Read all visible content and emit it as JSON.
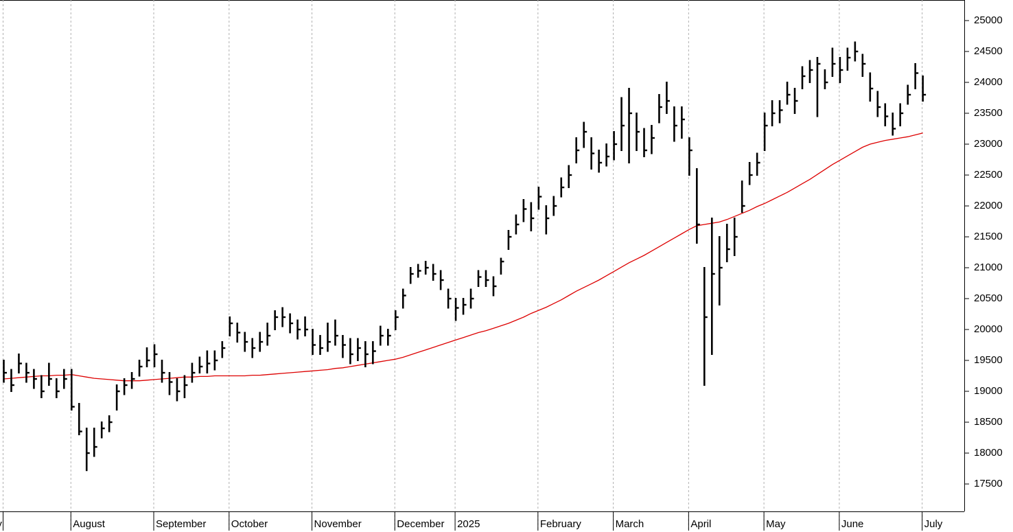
{
  "chart_data": {
    "type": "ohlc",
    "color": "#000000",
    "categories": [
      "ly",
      null,
      null,
      null,
      null,
      null,
      null,
      null,
      null,
      "August",
      null,
      null,
      null,
      null,
      null,
      null,
      null,
      null,
      null,
      null,
      "September",
      null,
      null,
      null,
      null,
      null,
      null,
      null,
      null,
      null,
      "October",
      null,
      null,
      null,
      null,
      null,
      null,
      null,
      null,
      null,
      null,
      "November",
      null,
      null,
      null,
      null,
      null,
      null,
      null,
      null,
      null,
      null,
      "December",
      null,
      null,
      null,
      null,
      null,
      null,
      null,
      "2025",
      null,
      null,
      null,
      null,
      null,
      null,
      null,
      null,
      null,
      null,
      "February",
      null,
      null,
      null,
      null,
      null,
      null,
      null,
      null,
      null,
      "March",
      null,
      null,
      null,
      null,
      null,
      null,
      null,
      null,
      null,
      "April",
      null,
      null,
      null,
      null,
      null,
      null,
      null,
      null,
      null,
      "May",
      null,
      null,
      null,
      null,
      null,
      null,
      null,
      null,
      null,
      "June",
      null,
      null,
      null,
      null,
      null,
      null,
      null,
      null,
      null,
      null,
      "July",
      null,
      null,
      null,
      null,
      null
    ],
    "close": [
      19300,
      19100,
      19450,
      19300,
      19200,
      19000,
      19200,
      19000,
      19200,
      18750,
      18350,
      18000,
      18100,
      18400,
      18500,
      19000,
      19100,
      19200,
      19400,
      19500,
      19600,
      19300,
      19150,
      19000,
      19100,
      19300,
      19400,
      19450,
      19500,
      19700,
      20100,
      19950,
      19800,
      19700,
      19800,
      19900,
      20200,
      20200,
      20100,
      20000,
      20000,
      19750,
      19700,
      19800,
      19900,
      19750,
      19600,
      19700,
      19600,
      19650,
      19900,
      19900,
      20200,
      20550,
      20900,
      20950,
      21000,
      20900,
      20800,
      20500,
      20350,
      20400,
      20500,
      20850,
      20800,
      20700,
      21100,
      21500,
      21700,
      21950,
      21800,
      22150,
      21800,
      22000,
      22300,
      22500,
      22900,
      23200,
      22850,
      22700,
      22800,
      23000,
      23300,
      23500,
      23200,
      22900,
      23100,
      23600,
      23700,
      23300,
      23400,
      22900,
      21700,
      20200,
      20900,
      21000,
      21300,
      21500,
      22000,
      22500,
      22700,
      23300,
      23500,
      23550,
      23800,
      23700,
      24100,
      24200,
      24300,
      24000,
      24300,
      24200,
      24400,
      24500,
      24300,
      23900,
      23600,
      23450,
      23250,
      23500,
      23800,
      24150,
      23800,
      null,
      null,
      null,
      null,
      null
    ],
    "high": [
      19500,
      19350,
      19600,
      19450,
      19350,
      19250,
      19450,
      19200,
      19350,
      19350,
      18800,
      18400,
      18400,
      18500,
      18600,
      19100,
      19200,
      19300,
      19500,
      19700,
      19750,
      19500,
      19300,
      19200,
      19250,
      19450,
      19550,
      19650,
      19650,
      19800,
      20200,
      20100,
      19950,
      19850,
      19950,
      20100,
      20300,
      20350,
      20250,
      20150,
      20200,
      20000,
      19900,
      20100,
      20150,
      19900,
      19850,
      19850,
      19800,
      19800,
      20050,
      20000,
      20300,
      20650,
      21000,
      21050,
      21100,
      21050,
      20950,
      20650,
      20500,
      20500,
      20650,
      20950,
      20950,
      20850,
      21150,
      21600,
      21850,
      22100,
      22050,
      22300,
      22000,
      22150,
      22450,
      22650,
      23100,
      23350,
      23100,
      22900,
      23000,
      23200,
      23750,
      23900,
      23500,
      23250,
      23300,
      23800,
      24000,
      23600,
      23600,
      23100,
      22600,
      21000,
      21800,
      21500,
      21700,
      21800,
      22400,
      22700,
      22850,
      23500,
      23700,
      23700,
      24000,
      23900,
      24250,
      24350,
      24400,
      24200,
      24550,
      24400,
      24550,
      24650,
      24450,
      24150,
      23850,
      23650,
      23500,
      23650,
      23950,
      24300,
      24100,
      null,
      null,
      null,
      null,
      null
    ],
    "low": [
      19150,
      19000,
      19300,
      19150,
      19050,
      18900,
      19100,
      18900,
      19050,
      18700,
      18300,
      17720,
      17950,
      18250,
      18350,
      18700,
      18950,
      19050,
      19250,
      19400,
      19400,
      19150,
      18950,
      18850,
      18900,
      19150,
      19300,
      19300,
      19350,
      19550,
      19900,
      19800,
      19650,
      19550,
      19650,
      19750,
      20000,
      20050,
      19950,
      19850,
      19900,
      19600,
      19600,
      19650,
      19750,
      19550,
      19450,
      19500,
      19400,
      19450,
      19750,
      19750,
      20000,
      20350,
      20750,
      20850,
      20900,
      20800,
      20650,
      20350,
      20150,
      20250,
      20350,
      20700,
      20700,
      20550,
      20900,
      21300,
      21550,
      21750,
      21600,
      21950,
      21550,
      21850,
      22150,
      22300,
      22700,
      22950,
      22600,
      22550,
      22650,
      22750,
      22900,
      22700,
      22900,
      22800,
      22850,
      23350,
      23500,
      23050,
      23100,
      22500,
      21400,
      19100,
      19600,
      20400,
      21100,
      21200,
      21900,
      22350,
      22500,
      22900,
      23300,
      23350,
      23650,
      23500,
      23900,
      24000,
      23450,
      23900,
      24100,
      24000,
      24200,
      24350,
      24100,
      23700,
      23450,
      23300,
      23150,
      23300,
      23650,
      23900,
      23700,
      null,
      null,
      null,
      null,
      null
    ],
    "moving_average": {
      "color": "#dd0000",
      "values": [
        19200,
        19210,
        19220,
        19230,
        19240,
        19250,
        19250,
        19260,
        19260,
        19270,
        19250,
        19230,
        19210,
        19200,
        19190,
        19180,
        19170,
        19170,
        19170,
        19180,
        19190,
        19200,
        19210,
        19220,
        19230,
        19230,
        19240,
        19240,
        19250,
        19250,
        19250,
        19250,
        19250,
        19260,
        19260,
        19270,
        19280,
        19290,
        19300,
        19310,
        19320,
        19330,
        19340,
        19350,
        19370,
        19380,
        19400,
        19420,
        19440,
        19460,
        19480,
        19500,
        19520,
        19550,
        19590,
        19630,
        19670,
        19710,
        19750,
        19790,
        19830,
        19870,
        19910,
        19950,
        19980,
        20020,
        20060,
        20100,
        20150,
        20200,
        20260,
        20310,
        20360,
        20420,
        20480,
        20550,
        20620,
        20680,
        20740,
        20800,
        20870,
        20940,
        21010,
        21080,
        21140,
        21200,
        21270,
        21340,
        21410,
        21480,
        21550,
        21620,
        21680,
        21700,
        21720,
        21740,
        21780,
        21830,
        21880,
        21930,
        21990,
        22040,
        22100,
        22160,
        22220,
        22290,
        22360,
        22430,
        22510,
        22590,
        22670,
        22740,
        22810,
        22880,
        22950,
        23000,
        23030,
        23060,
        23080,
        23100,
        23120,
        23150,
        23180,
        null,
        null,
        null,
        null,
        null
      ]
    },
    "ylim": [
      17056,
      25333
    ],
    "yticks": [
      17500,
      18000,
      18500,
      19000,
      19500,
      20000,
      20500,
      21000,
      21500,
      22000,
      22500,
      23000,
      23500,
      24000,
      24500,
      25000
    ],
    "grid": true
  }
}
